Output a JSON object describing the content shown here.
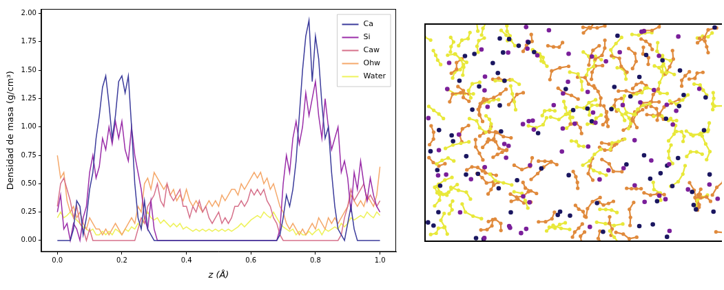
{
  "chart_data": {
    "type": "line",
    "x_label": "z (Å)",
    "y_label": "Densidad de masa (g/cm³)",
    "x": [
      0,
      0.01,
      0.02,
      0.03,
      0.04,
      0.05,
      0.06,
      0.07,
      0.08,
      0.09,
      0.1,
      0.11,
      0.12,
      0.13,
      0.14,
      0.15,
      0.16,
      0.17,
      0.18,
      0.19,
      0.2,
      0.21,
      0.22,
      0.23,
      0.24,
      0.25,
      0.26,
      0.27,
      0.28,
      0.29,
      0.3,
      0.31,
      0.32,
      0.33,
      0.34,
      0.35,
      0.36,
      0.37,
      0.38,
      0.39,
      0.4,
      0.41,
      0.42,
      0.43,
      0.44,
      0.45,
      0.46,
      0.47,
      0.48,
      0.49,
      0.5,
      0.51,
      0.52,
      0.53,
      0.54,
      0.55,
      0.56,
      0.57,
      0.58,
      0.59,
      0.6,
      0.61,
      0.62,
      0.63,
      0.64,
      0.65,
      0.66,
      0.67,
      0.68,
      0.69,
      0.7,
      0.71,
      0.72,
      0.73,
      0.74,
      0.75,
      0.76,
      0.77,
      0.78,
      0.79,
      0.8,
      0.81,
      0.82,
      0.83,
      0.84,
      0.85,
      0.86,
      0.87,
      0.88,
      0.89,
      0.9,
      0.91,
      0.92,
      0.93,
      0.94,
      0.95,
      0.96,
      0.97,
      0.98,
      0.99,
      1
    ],
    "series": [
      {
        "name": "Ca",
        "color": "#3b3b9b",
        "values": [
          0,
          0,
          0,
          0,
          0,
          0.1,
          0.35,
          0.3,
          0.05,
          0.2,
          0.45,
          0.6,
          0.9,
          1.1,
          1.35,
          1.45,
          1.2,
          0.9,
          1.1,
          1.4,
          1.45,
          1.3,
          1.45,
          1.0,
          0.5,
          0.2,
          0.1,
          0.35,
          0.1,
          0.05,
          0,
          0,
          0,
          0,
          0,
          0,
          0,
          0,
          0,
          0,
          0,
          0,
          0,
          0,
          0,
          0,
          0,
          0,
          0,
          0,
          0,
          0,
          0,
          0,
          0,
          0,
          0,
          0,
          0,
          0,
          0,
          0,
          0,
          0,
          0,
          0,
          0,
          0,
          0,
          0.05,
          0.2,
          0.4,
          0.3,
          0.45,
          0.7,
          1.1,
          1.5,
          1.8,
          1.94,
          1.4,
          1.8,
          1.6,
          1.2,
          0.9,
          1.0,
          0.6,
          0.3,
          0.1,
          0.05,
          0,
          0.15,
          0.3,
          0.1,
          0,
          0,
          0,
          0,
          0,
          0,
          0,
          0
        ]
      },
      {
        "name": "Si",
        "color": "#9a2da8",
        "values": [
          0.25,
          0.4,
          0.1,
          0.15,
          0,
          0.15,
          0.1,
          0,
          0.2,
          0.3,
          0.6,
          0.75,
          0.55,
          0.65,
          0.9,
          0.8,
          1.0,
          0.85,
          1.05,
          0.9,
          1.05,
          0.8,
          0.7,
          1.0,
          0.75,
          0.6,
          0.45,
          0.2,
          0.1,
          0.35,
          0.1,
          0,
          0,
          0,
          0,
          0,
          0,
          0,
          0,
          0,
          0,
          0,
          0,
          0,
          0,
          0,
          0,
          0,
          0,
          0,
          0,
          0,
          0,
          0,
          0,
          0,
          0,
          0,
          0,
          0,
          0,
          0,
          0,
          0,
          0,
          0,
          0,
          0,
          0,
          0.1,
          0.5,
          0.75,
          0.6,
          0.9,
          1.05,
          0.85,
          1.0,
          1.3,
          1.1,
          1.25,
          1.4,
          1.1,
          0.9,
          1.25,
          1.0,
          0.8,
          0.9,
          1.0,
          0.6,
          0.7,
          0.55,
          0.25,
          0.6,
          0.45,
          0.7,
          0.5,
          0.35,
          0.55,
          0.4,
          0.3,
          0.25
        ]
      },
      {
        "name": "Caw",
        "color": "#d6708a",
        "values": [
          0.3,
          0.5,
          0.55,
          0.45,
          0.35,
          0.2,
          0.3,
          0.15,
          0.1,
          0,
          0.1,
          0,
          0,
          0,
          0,
          0,
          0,
          0,
          0,
          0,
          0,
          0,
          0,
          0,
          0,
          0.1,
          0.2,
          0.15,
          0.3,
          0.35,
          0.4,
          0.5,
          0.35,
          0.3,
          0.5,
          0.4,
          0.35,
          0.4,
          0.45,
          0.3,
          0.3,
          0.2,
          0.3,
          0.25,
          0.35,
          0.25,
          0.3,
          0.2,
          0.15,
          0.2,
          0.25,
          0.15,
          0.2,
          0.15,
          0.2,
          0.3,
          0.3,
          0.35,
          0.3,
          0.35,
          0.45,
          0.4,
          0.45,
          0.4,
          0.45,
          0.35,
          0.3,
          0.2,
          0.15,
          0.05,
          0,
          0,
          0,
          0,
          0,
          0,
          0,
          0,
          0,
          0,
          0,
          0,
          0,
          0,
          0,
          0,
          0,
          0,
          0.05,
          0.2,
          0.3,
          0.45,
          0.35,
          0.4,
          0.45,
          0.5,
          0.35,
          0.4,
          0.35,
          0.3,
          0.35
        ]
      },
      {
        "name": "Ohw",
        "color": "#f5a86a",
        "values": [
          0.75,
          0.55,
          0.6,
          0.35,
          0.25,
          0.3,
          0.2,
          0.25,
          0.15,
          0.1,
          0.2,
          0.15,
          0.1,
          0.1,
          0.05,
          0.1,
          0.05,
          0.1,
          0.15,
          0.1,
          0.05,
          0.1,
          0.15,
          0.2,
          0.15,
          0.3,
          0.25,
          0.5,
          0.55,
          0.45,
          0.6,
          0.55,
          0.5,
          0.45,
          0.5,
          0.4,
          0.45,
          0.35,
          0.4,
          0.35,
          0.45,
          0.35,
          0.3,
          0.35,
          0.3,
          0.25,
          0.3,
          0.35,
          0.3,
          0.35,
          0.3,
          0.4,
          0.35,
          0.4,
          0.45,
          0.45,
          0.4,
          0.5,
          0.45,
          0.5,
          0.55,
          0.6,
          0.55,
          0.6,
          0.5,
          0.55,
          0.45,
          0.5,
          0.4,
          0.3,
          0.25,
          0.15,
          0.1,
          0.15,
          0.1,
          0.05,
          0.1,
          0.05,
          0.1,
          0.15,
          0.1,
          0.2,
          0.15,
          0.1,
          0.2,
          0.15,
          0.2,
          0.15,
          0.2,
          0.25,
          0.3,
          0.4,
          0.35,
          0.3,
          0.35,
          0.3,
          0.4,
          0.35,
          0.3,
          0.4,
          0.65
        ]
      },
      {
        "name": "Water",
        "color": "#eef25a",
        "values": [
          0.2,
          0.25,
          0.2,
          0.22,
          0.25,
          0.2,
          0.18,
          0.15,
          0.12,
          0.1,
          0.08,
          0.1,
          0.05,
          0.05,
          0.08,
          0.05,
          0.08,
          0.05,
          0.1,
          0.08,
          0.05,
          0.1,
          0.08,
          0.12,
          0.1,
          0.15,
          0.12,
          0.2,
          0.25,
          0.2,
          0.18,
          0.2,
          0.15,
          0.18,
          0.15,
          0.12,
          0.15,
          0.12,
          0.15,
          0.1,
          0.12,
          0.1,
          0.08,
          0.1,
          0.08,
          0.1,
          0.08,
          0.1,
          0.08,
          0.1,
          0.08,
          0.1,
          0.08,
          0.1,
          0.08,
          0.1,
          0.12,
          0.15,
          0.12,
          0.15,
          0.18,
          0.2,
          0.22,
          0.2,
          0.25,
          0.22,
          0.2,
          0.25,
          0.2,
          0.15,
          0.12,
          0.1,
          0.08,
          0.1,
          0.05,
          0.08,
          0.05,
          0.05,
          0.08,
          0.05,
          0.08,
          0.1,
          0.05,
          0.1,
          0.08,
          0.1,
          0.12,
          0.1,
          0.15,
          0.12,
          0.15,
          0.2,
          0.18,
          0.2,
          0.22,
          0.2,
          0.25,
          0.22,
          0.2,
          0.25,
          0.22
        ]
      }
    ],
    "xlim": [
      -0.05,
      1.05
    ],
    "xticks": [
      {
        "value": 0,
        "label": "0.0"
      },
      0.2,
      0.4,
      0.6,
      0.8,
      {
        "value": 1,
        "label": "1.0"
      }
    ],
    "ylim": [
      -0.1,
      2.04
    ],
    "yticks": [
      {
        "value": 0,
        "label": "0.00"
      },
      0.25,
      {
        "value": 0.5,
        "label": "0.50"
      },
      0.75,
      {
        "value": 1,
        "label": "1.00"
      },
      1.25,
      {
        "value": 1.5,
        "label": "1.50"
      },
      1.75,
      {
        "value": 2,
        "label": "2.00"
      }
    ],
    "grid": false,
    "legend": "upper right"
  }
}
